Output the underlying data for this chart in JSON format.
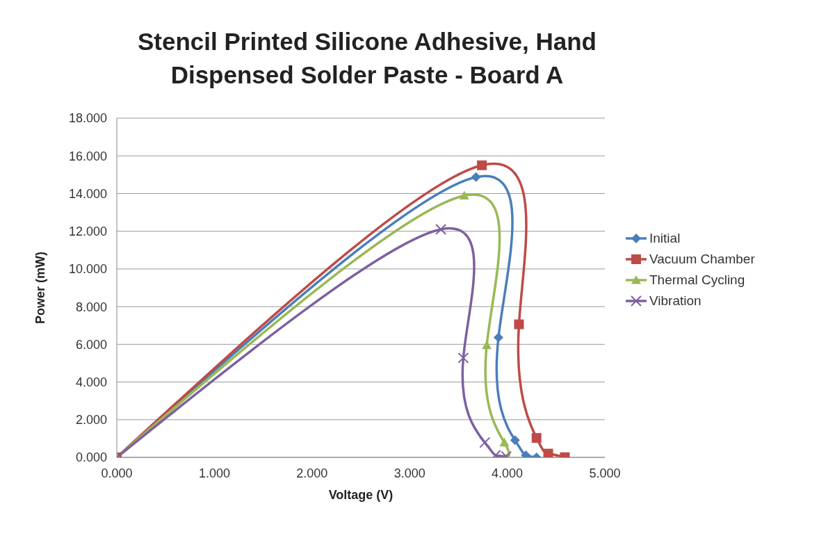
{
  "chart_data": {
    "type": "line",
    "title": "Stencil Printed Silicone Adhesive, Hand Dispensed Solder Paste - Board A",
    "xlabel": "Voltage (V)",
    "ylabel": "Power (mW)",
    "xlim": [
      0,
      5
    ],
    "xticks": [
      {
        "value": 0,
        "label": "0.000"
      },
      {
        "value": 1,
        "label": "1.000"
      },
      {
        "value": 2,
        "label": "2.000"
      },
      {
        "value": 3,
        "label": "3.000"
      },
      {
        "value": 4,
        "label": "4.000"
      },
      {
        "value": 5,
        "label": "5.000"
      }
    ],
    "ylim": [
      0,
      18
    ],
    "yticks": [
      {
        "value": 0,
        "label": "0.000"
      },
      {
        "value": 2,
        "label": "2.000"
      },
      {
        "value": 4,
        "label": "4.000"
      },
      {
        "value": 6,
        "label": "6.000"
      },
      {
        "value": 8,
        "label": "8.000"
      },
      {
        "value": 10,
        "label": "10.000"
      },
      {
        "value": 12,
        "label": "12.000"
      },
      {
        "value": 14,
        "label": "14.000"
      },
      {
        "value": 16,
        "label": "16.000"
      },
      {
        "value": 18,
        "label": "18.000"
      }
    ],
    "grid": "y",
    "legend": "right",
    "series": [
      {
        "name": "Initial",
        "color": "#4a7ebb",
        "marker": "diamond",
        "x": [
          0,
          3.68,
          3.91,
          4.08,
          4.19,
          4.3
        ],
        "values": [
          0,
          14.87,
          6.36,
          0.91,
          0.11,
          0.0
        ]
      },
      {
        "name": "Vacuum Chamber",
        "color": "#be4b48",
        "marker": "square",
        "x": [
          0,
          3.74,
          4.12,
          4.3,
          4.42,
          4.59
        ],
        "values": [
          0,
          15.5,
          7.06,
          1.03,
          0.2,
          0.01
        ]
      },
      {
        "name": "Thermal Cycling",
        "color": "#98b954",
        "marker": "triangle",
        "x": [
          0,
          3.56,
          3.79,
          3.97,
          4.0
        ],
        "values": [
          0,
          13.89,
          5.95,
          0.79,
          0.0
        ]
      },
      {
        "name": "Vibration",
        "color": "#7d60a0",
        "marker": "cross",
        "x": [
          0,
          3.32,
          3.55,
          3.77,
          3.88,
          3.99
        ],
        "values": [
          0,
          12.1,
          5.28,
          0.79,
          0.11,
          0.05
        ]
      }
    ]
  }
}
